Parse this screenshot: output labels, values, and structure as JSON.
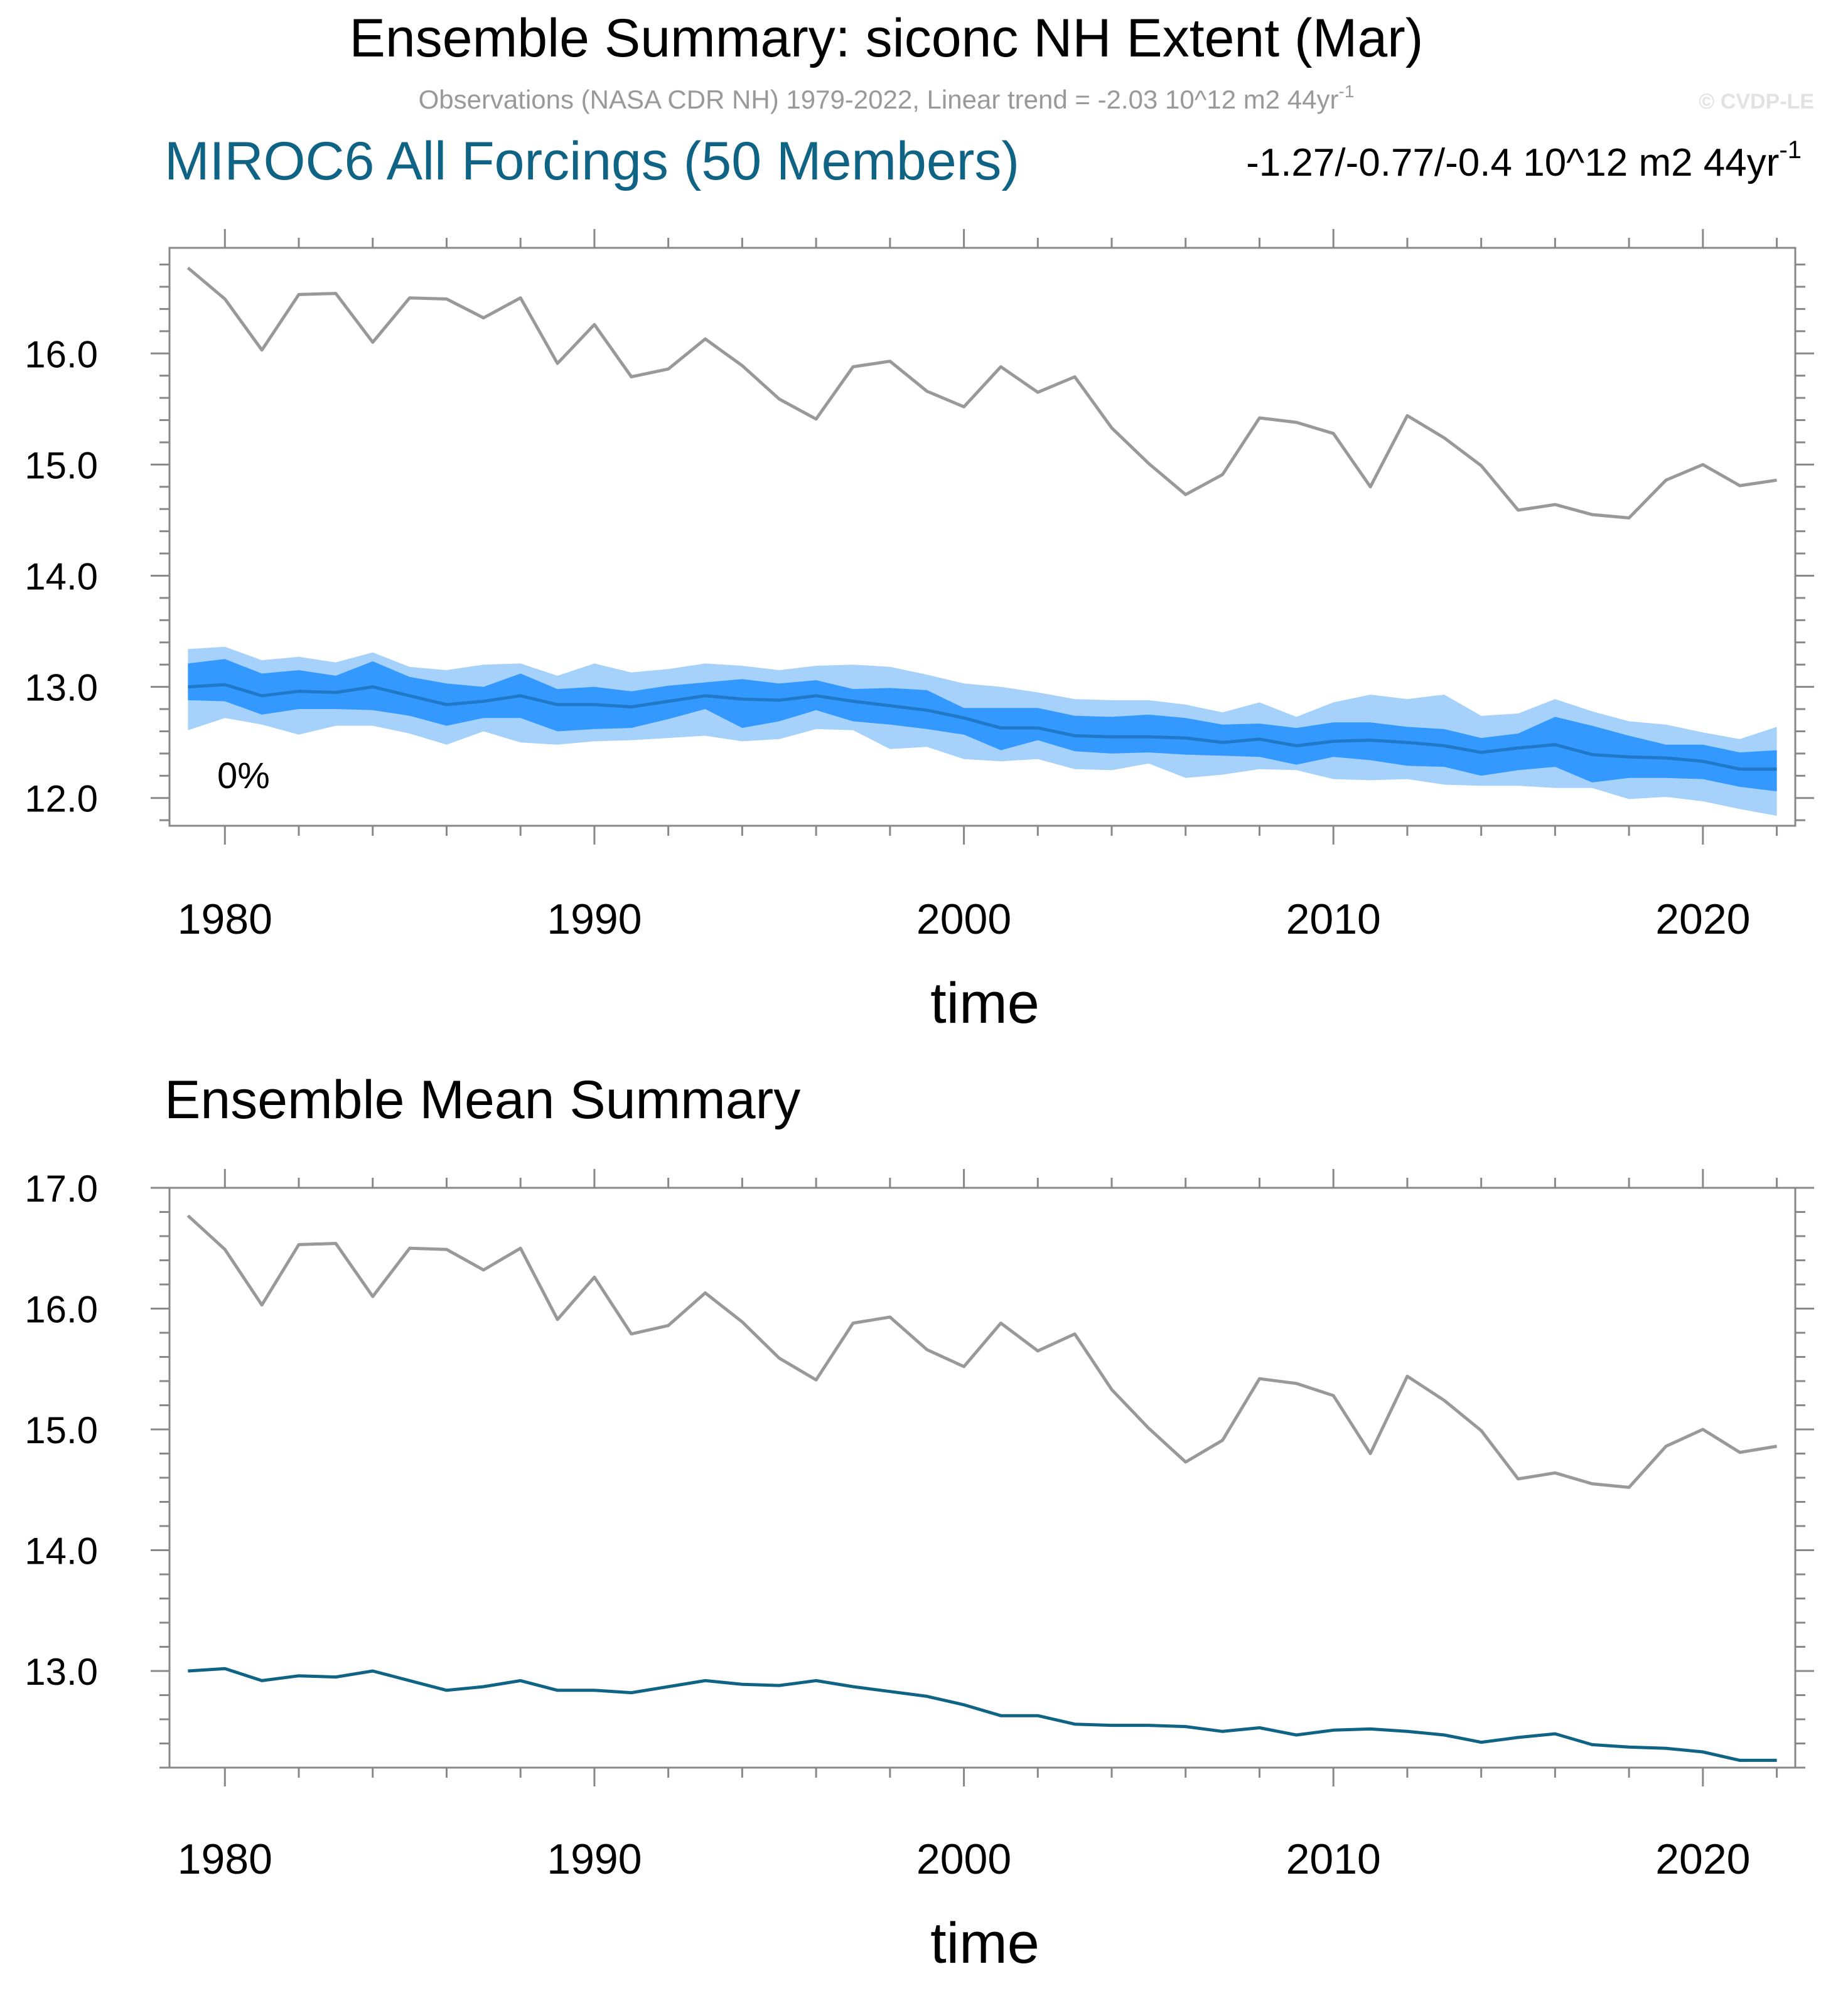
{
  "header": {
    "title": "Ensemble Summary: siconc NH Extent (Mar)",
    "obs_subtitle": "Observations (NASA CDR NH) 1979-2022, Linear trend = -2.03 10^12 m2 44yr",
    "obs_subtitle_sup": "-1",
    "copyright": "© CVDP-LE"
  },
  "colors": {
    "obs_line": "#999999",
    "ensemble_mean_line": "#1f78c8",
    "mean_panel_line": "#0f6384",
    "band_outer": "#a6d1fb",
    "band_inner": "#3399ff",
    "model_title": "#0f6384",
    "frame": "#888888",
    "text": "#000000"
  },
  "chart_data": [
    {
      "type": "line",
      "panel": "ensemble-summary",
      "title": "MIROC6 All Forcings (50 Members)",
      "trend_label": "-1.27/-0.77/-0.4 10^12 m2 44yr",
      "trend_label_sup": "-1",
      "annotation": "0%",
      "xlabel": "time",
      "ylabel": "",
      "xlim": [
        1978.5,
        2022.5
      ],
      "ylim": [
        11.75,
        16.95
      ],
      "xticks": [
        1980,
        1990,
        2000,
        2010,
        2020
      ],
      "yticks": [
        12.0,
        13.0,
        14.0,
        15.0,
        16.0
      ],
      "ytick_labels": [
        "12.0",
        "13.0",
        "14.0",
        "15.0",
        "16.0"
      ],
      "x": [
        1979,
        1980,
        1981,
        1982,
        1983,
        1984,
        1985,
        1986,
        1987,
        1988,
        1989,
        1990,
        1991,
        1992,
        1993,
        1994,
        1995,
        1996,
        1997,
        1998,
        1999,
        2000,
        2001,
        2002,
        2003,
        2004,
        2005,
        2006,
        2007,
        2008,
        2009,
        2010,
        2011,
        2012,
        2013,
        2014,
        2015,
        2016,
        2017,
        2018,
        2019,
        2020,
        2021,
        2022
      ],
      "series": [
        {
          "name": "Observations",
          "kind": "line",
          "values": [
            16.77,
            16.49,
            16.03,
            16.53,
            16.54,
            16.1,
            16.5,
            16.49,
            16.32,
            16.5,
            15.91,
            16.26,
            15.79,
            15.86,
            16.13,
            15.89,
            15.59,
            15.41,
            15.88,
            15.93,
            15.66,
            15.52,
            15.88,
            15.65,
            15.79,
            15.33,
            15.01,
            14.73,
            14.91,
            15.42,
            15.38,
            15.28,
            14.8,
            15.44,
            15.24,
            14.99,
            14.59,
            14.64,
            14.55,
            14.52,
            14.86,
            15.0,
            14.81,
            14.86
          ]
        },
        {
          "name": "Ensemble mean",
          "kind": "line",
          "values": [
            13.0,
            13.02,
            12.92,
            12.96,
            12.95,
            13.0,
            12.92,
            12.84,
            12.87,
            12.92,
            12.84,
            12.84,
            12.82,
            12.87,
            12.92,
            12.89,
            12.88,
            12.92,
            12.87,
            12.83,
            12.79,
            12.72,
            12.63,
            12.63,
            12.56,
            12.55,
            12.55,
            12.54,
            12.5,
            12.53,
            12.47,
            12.51,
            12.52,
            12.5,
            12.47,
            12.41,
            12.45,
            12.48,
            12.39,
            12.37,
            12.36,
            12.33,
            12.26,
            12.26
          ]
        },
        {
          "name": "Min-max range",
          "kind": "band",
          "lower": [
            12.61,
            12.72,
            12.66,
            12.57,
            12.65,
            12.65,
            12.58,
            12.48,
            12.6,
            12.5,
            12.48,
            12.51,
            12.52,
            12.54,
            12.56,
            12.51,
            12.53,
            12.62,
            12.61,
            12.44,
            12.46,
            12.35,
            12.33,
            12.35,
            12.26,
            12.25,
            12.31,
            12.18,
            12.21,
            12.26,
            12.25,
            12.17,
            12.16,
            12.17,
            12.12,
            12.11,
            12.11,
            12.09,
            12.09,
            11.99,
            12.01,
            11.97,
            11.9,
            11.84
          ],
          "upper": [
            13.34,
            13.36,
            13.24,
            13.27,
            13.22,
            13.31,
            13.18,
            13.15,
            13.2,
            13.21,
            13.1,
            13.21,
            13.13,
            13.16,
            13.21,
            13.19,
            13.15,
            13.19,
            13.2,
            13.18,
            13.11,
            13.03,
            13.0,
            12.95,
            12.89,
            12.88,
            12.88,
            12.84,
            12.77,
            12.86,
            12.73,
            12.86,
            12.93,
            12.89,
            12.93,
            12.74,
            12.76,
            12.89,
            12.78,
            12.69,
            12.66,
            12.59,
            12.53,
            12.64
          ]
        },
        {
          "name": "10-90% range",
          "kind": "band",
          "lower": [
            12.88,
            12.87,
            12.75,
            12.8,
            12.8,
            12.79,
            12.74,
            12.65,
            12.72,
            12.72,
            12.6,
            12.62,
            12.63,
            12.71,
            12.8,
            12.63,
            12.69,
            12.79,
            12.69,
            12.66,
            12.62,
            12.57,
            12.43,
            12.52,
            12.42,
            12.4,
            12.41,
            12.39,
            12.38,
            12.37,
            12.3,
            12.37,
            12.34,
            12.29,
            12.28,
            12.2,
            12.25,
            12.28,
            12.14,
            12.18,
            12.18,
            12.17,
            12.1,
            12.06
          ],
          "upper": [
            13.21,
            13.25,
            13.12,
            13.15,
            13.1,
            13.23,
            13.09,
            13.03,
            13.0,
            13.12,
            12.98,
            13.0,
            12.96,
            13.01,
            13.04,
            13.07,
            13.03,
            13.06,
            12.98,
            12.99,
            12.97,
            12.81,
            12.81,
            12.81,
            12.74,
            12.73,
            12.75,
            12.72,
            12.66,
            12.67,
            12.63,
            12.68,
            12.68,
            12.64,
            12.62,
            12.54,
            12.58,
            12.73,
            12.65,
            12.56,
            12.48,
            12.48,
            12.41,
            12.43
          ]
        }
      ]
    },
    {
      "type": "line",
      "panel": "ensemble-mean-summary",
      "title": "Ensemble Mean Summary",
      "xlabel": "time",
      "ylabel": "",
      "xlim": [
        1978.5,
        2022.5
      ],
      "ylim": [
        12.2,
        17.0
      ],
      "xticks": [
        1980,
        1990,
        2000,
        2010,
        2020
      ],
      "yticks": [
        13.0,
        14.0,
        15.0,
        16.0,
        17.0
      ],
      "ytick_labels": [
        "13.0",
        "14.0",
        "15.0",
        "16.0",
        "17.0"
      ],
      "x": [
        1979,
        1980,
        1981,
        1982,
        1983,
        1984,
        1985,
        1986,
        1987,
        1988,
        1989,
        1990,
        1991,
        1992,
        1993,
        1994,
        1995,
        1996,
        1997,
        1998,
        1999,
        2000,
        2001,
        2002,
        2003,
        2004,
        2005,
        2006,
        2007,
        2008,
        2009,
        2010,
        2011,
        2012,
        2013,
        2014,
        2015,
        2016,
        2017,
        2018,
        2019,
        2020,
        2021,
        2022
      ],
      "series": [
        {
          "name": "Observations",
          "kind": "line",
          "values": [
            16.77,
            16.49,
            16.03,
            16.53,
            16.54,
            16.1,
            16.5,
            16.49,
            16.32,
            16.5,
            15.91,
            16.26,
            15.79,
            15.86,
            16.13,
            15.89,
            15.59,
            15.41,
            15.88,
            15.93,
            15.66,
            15.52,
            15.88,
            15.65,
            15.79,
            15.33,
            15.01,
            14.73,
            14.91,
            15.42,
            15.38,
            15.28,
            14.8,
            15.44,
            15.24,
            14.99,
            14.59,
            14.64,
            14.55,
            14.52,
            14.86,
            15.0,
            14.81,
            14.86
          ]
        },
        {
          "name": "Ensemble mean",
          "kind": "line",
          "values": [
            13.0,
            13.02,
            12.92,
            12.96,
            12.95,
            13.0,
            12.92,
            12.84,
            12.87,
            12.92,
            12.84,
            12.84,
            12.82,
            12.87,
            12.92,
            12.89,
            12.88,
            12.92,
            12.87,
            12.83,
            12.79,
            12.72,
            12.63,
            12.63,
            12.56,
            12.55,
            12.55,
            12.54,
            12.5,
            12.53,
            12.47,
            12.51,
            12.52,
            12.5,
            12.47,
            12.41,
            12.45,
            12.48,
            12.39,
            12.37,
            12.36,
            12.33,
            12.26,
            12.26
          ]
        }
      ]
    }
  ]
}
